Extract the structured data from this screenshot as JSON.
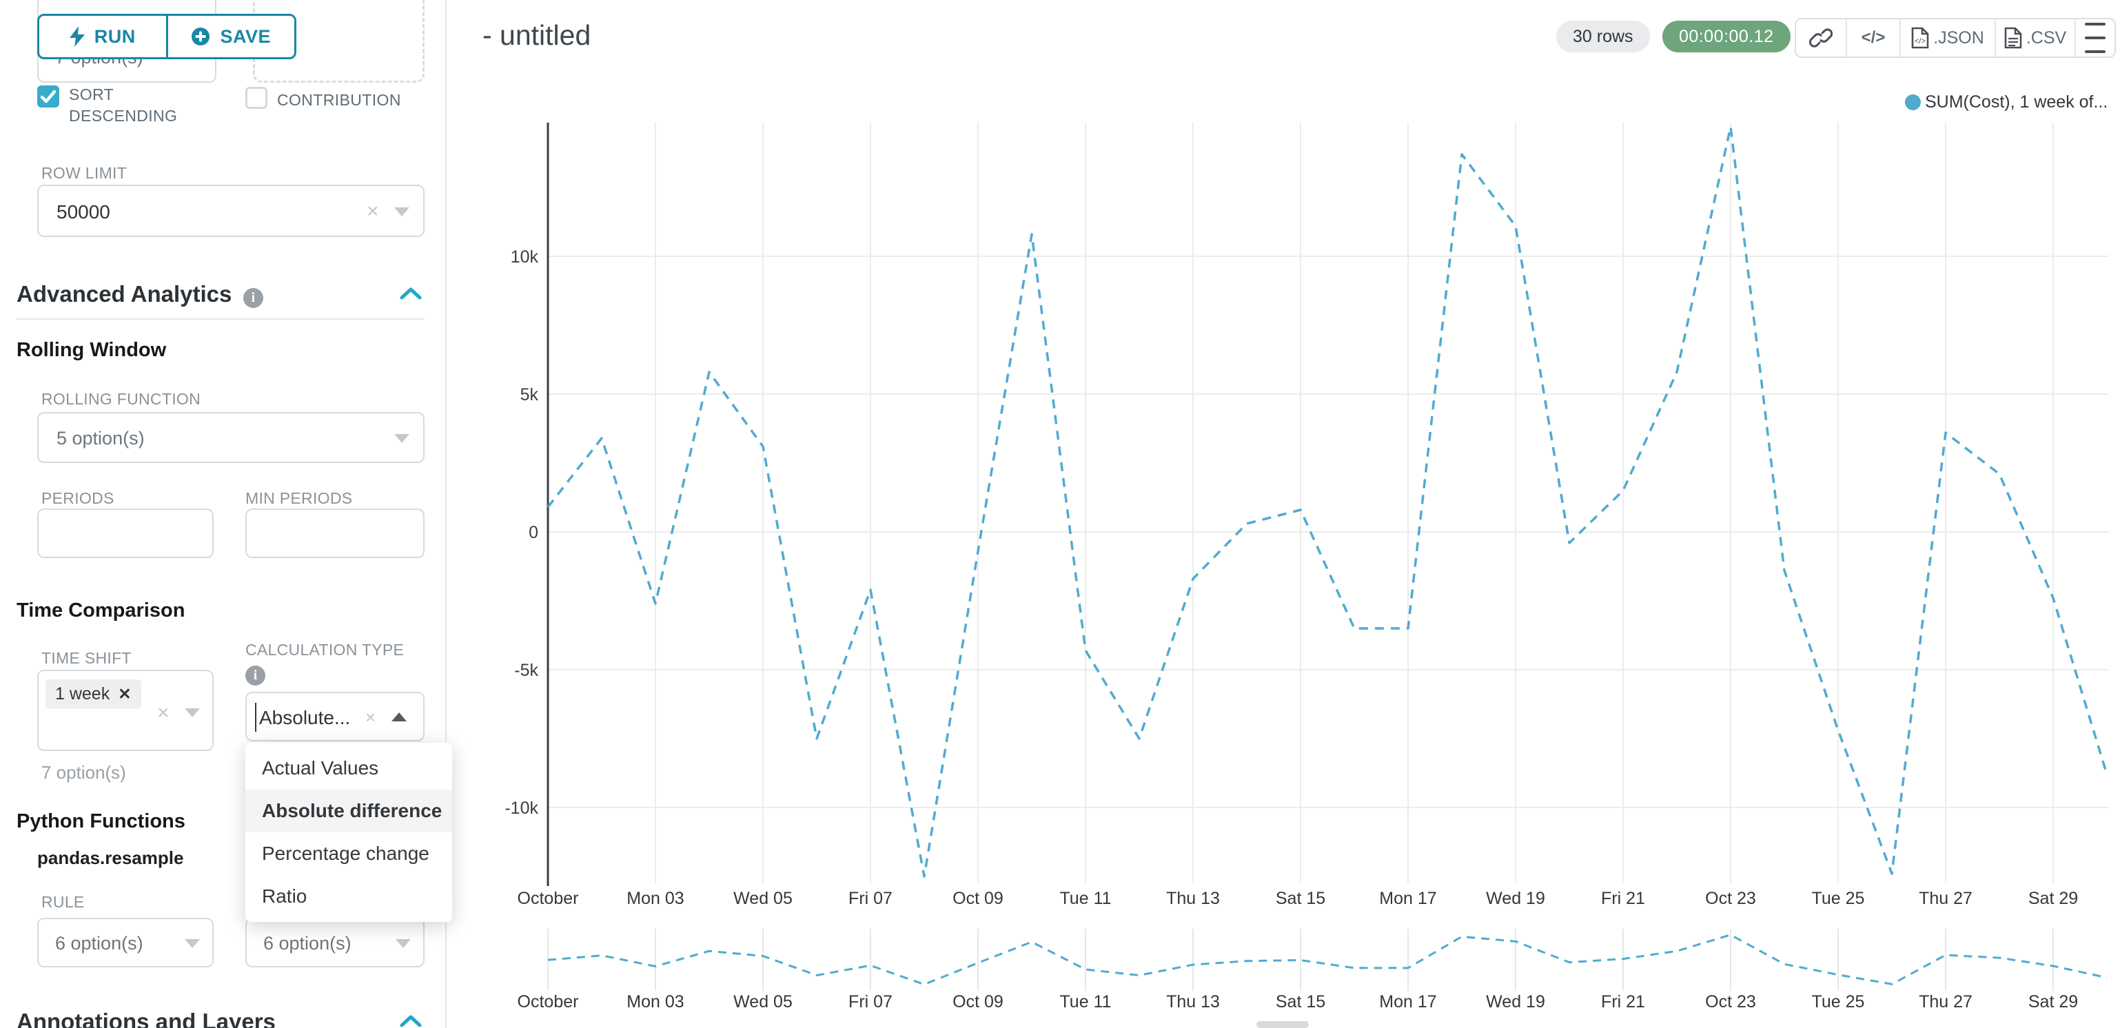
{
  "colors": {
    "accent_teal": "#1a87a3",
    "checkbox_teal": "#35adcb",
    "chevron_blue": "#20a7c9",
    "timer_green": "#6da57c",
    "line_blue": "#4fabd0"
  },
  "left_panel": {
    "run_label": "RUN",
    "save_label": "SAVE",
    "clipped_select_value": "7 option(s)",
    "sort_descending_label": "SORT DESCENDING",
    "contribution_label": "CONTRIBUTION",
    "row_limit_label": "ROW LIMIT",
    "row_limit_value": "50000",
    "advanced_analytics_title": "Advanced Analytics",
    "rolling_window_title": "Rolling Window",
    "rolling_function_label": "ROLLING FUNCTION",
    "rolling_function_value": "5 option(s)",
    "periods_label": "PERIODS",
    "min_periods_label": "MIN PERIODS",
    "time_comparison_title": "Time Comparison",
    "time_shift_label": "TIME SHIFT",
    "time_shift_tag": "1 week",
    "time_shift_hint": "7 option(s)",
    "calculation_type_label": "CALCULATION TYPE",
    "calculation_type_value": "Absolute...",
    "dropdown_options": [
      "Actual Values",
      "Absolute difference",
      "Percentage change",
      "Ratio"
    ],
    "dropdown_selected": "Absolute difference",
    "python_functions_title": "Python Functions",
    "pandas_resample_label": "pandas.resample",
    "rule_label": "RULE",
    "rule_value_left": "6 option(s)",
    "rule_value_right": "6 option(s)",
    "annotations_title": "Annotations and Layers"
  },
  "header": {
    "title": "- untitled",
    "rows_badge": "30 rows",
    "timer": "00:00:00.12",
    "json_label": ".JSON",
    "csv_label": ".CSV"
  },
  "chart_data": {
    "type": "line",
    "legend": "SUM(Cost), 1 week of...",
    "line_color": "#4fabd0",
    "line_style": "dashed",
    "x_tick_labels": [
      "October",
      "Mon 03",
      "Wed 05",
      "Fri 07",
      "Oct 09",
      "Tue 11",
      "Thu 13",
      "Sat 15",
      "Mon 17",
      "Wed 19",
      "Fri 21",
      "Oct 23",
      "Tue 25",
      "Thu 27",
      "Sat 29"
    ],
    "y_tick_labels": [
      "10k",
      "5k",
      "0",
      "-5k",
      "-10k"
    ],
    "y_tick_values": [
      10000,
      5000,
      0,
      -5000,
      -10000
    ],
    "ylim": [
      -12700,
      14800
    ],
    "num_points": 30,
    "values": [
      900,
      3400,
      -2600,
      5800,
      3100,
      -7500,
      -2100,
      -12500,
      -700,
      10800,
      -4300,
      -7500,
      -1700,
      300,
      800,
      -3500,
      -3500,
      13700,
      11100,
      -400,
      1500,
      5800,
      14700,
      -1400,
      -7200,
      -12400,
      3600,
      2100,
      -2400,
      -8800
    ],
    "mini_ylim": [
      -13000,
      15000
    ]
  }
}
